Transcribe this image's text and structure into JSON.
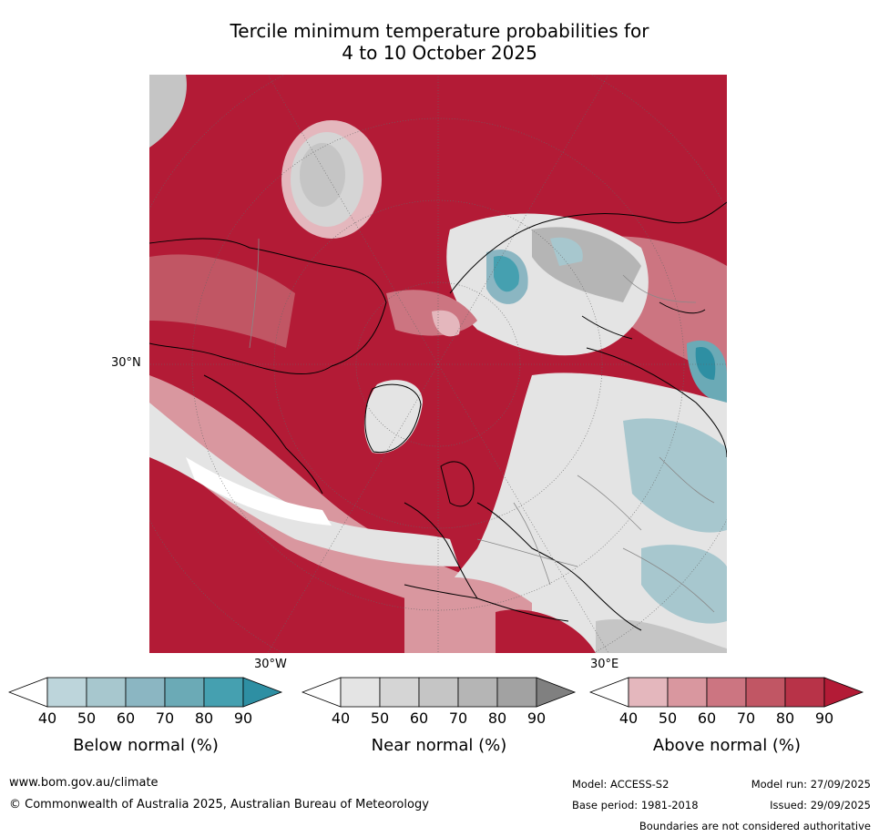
{
  "title": {
    "line1": "Tercile minimum temperature probabilities for",
    "line2": "4 to 10 October 2025"
  },
  "map": {
    "lat_label": "30°N",
    "lon_labels": [
      "30°W",
      "30°E"
    ]
  },
  "colorbars": [
    {
      "name": "below",
      "label": "Below normal (%)",
      "ticks": [
        "40",
        "50",
        "60",
        "70",
        "80",
        "90"
      ],
      "colors": [
        "#ffffff",
        "#bdd5db",
        "#a7c7ce",
        "#8bb6c2",
        "#6baab6",
        "#45a0b0",
        "#2e8fa3"
      ]
    },
    {
      "name": "near",
      "label": "Near normal (%)",
      "ticks": [
        "40",
        "50",
        "60",
        "70",
        "80",
        "90"
      ],
      "colors": [
        "#ffffff",
        "#e4e4e4",
        "#d5d5d5",
        "#c5c5c5",
        "#b5b5b5",
        "#a2a2a2",
        "#808080"
      ]
    },
    {
      "name": "above",
      "label": "Above normal (%)",
      "ticks": [
        "40",
        "50",
        "60",
        "70",
        "80",
        "90"
      ],
      "colors": [
        "#ffffff",
        "#e4b7bd",
        "#d9979f",
        "#cc7581",
        "#c15664",
        "#b83348",
        "#b31b36"
      ]
    }
  ],
  "footer": {
    "url": "www.bom.gov.au/climate",
    "copyright": "© Commonwealth of Australia 2025, Australian Bureau of Meteorology",
    "model": "Model: ACCESS-S2",
    "base_period": "Base period: 1981-2018",
    "model_run": "Model run: 27/09/2025",
    "issued": "Issued: 29/09/2025",
    "disclaimer": "Boundaries are not considered authoritative"
  }
}
